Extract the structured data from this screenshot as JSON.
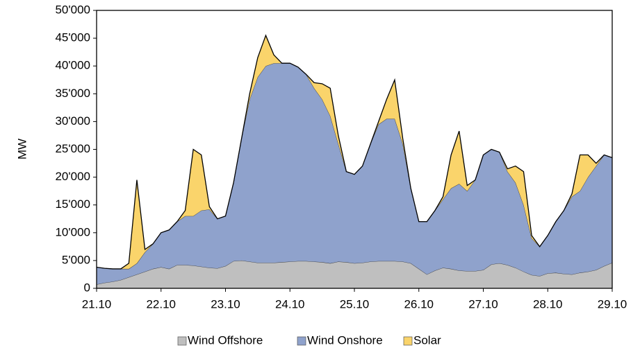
{
  "chart_data": {
    "type": "stacked_area",
    "y_label": "MW",
    "categories": [
      "21.10",
      null,
      null,
      null,
      null,
      null,
      null,
      null,
      "22.10",
      null,
      null,
      null,
      null,
      null,
      null,
      null,
      "23.10",
      null,
      null,
      null,
      null,
      null,
      null,
      null,
      "24.10",
      null,
      null,
      null,
      null,
      null,
      null,
      null,
      "25.10",
      null,
      null,
      null,
      null,
      null,
      null,
      null,
      "26.10",
      null,
      null,
      null,
      null,
      null,
      null,
      null,
      "27.10",
      null,
      null,
      null,
      null,
      null,
      null,
      null,
      "28.10",
      null,
      null,
      null,
      null,
      null,
      null,
      null,
      "29.10"
    ],
    "series": [
      {
        "name": "Wind Offshore",
        "color": "#bfbfbf",
        "values": [
          700,
          1000,
          1200,
          1500,
          2000,
          2500,
          3000,
          3500,
          3800,
          3500,
          4200,
          4200,
          4100,
          3900,
          3700,
          3600,
          4000,
          4900,
          5000,
          4800,
          4600,
          4600,
          4600,
          4700,
          4800,
          4900,
          4900,
          4800,
          4700,
          4500,
          4800,
          4700,
          4500,
          4600,
          4800,
          4900,
          4900,
          4900,
          4800,
          4500,
          3500,
          2500,
          3200,
          3700,
          3500,
          3200,
          3100,
          3100,
          3300,
          4300,
          4500,
          4200,
          3700,
          3000,
          2400,
          2200,
          2700,
          2800,
          2600,
          2500,
          2800,
          3000,
          3300,
          4000,
          4600
        ]
      },
      {
        "name": "Wind Onshore",
        "color": "#8fa2cc",
        "values": [
          3100,
          2600,
          2300,
          2000,
          1500,
          2000,
          3500,
          4500,
          6200,
          7000,
          7800,
          8800,
          8900,
          10100,
          10500,
          8900,
          9000,
          14100,
          22000,
          29200,
          33400,
          35400,
          35900,
          35800,
          35700,
          34900,
          33600,
          31200,
          29300,
          26500,
          21200,
          16300,
          16000,
          17400,
          21200,
          24600,
          25600,
          25600,
          21200,
          13500,
          8500,
          9500,
          10800,
          12300,
          14500,
          15600,
          14400,
          16400,
          20700,
          20700,
          20000,
          16800,
          15300,
          12000,
          6600,
          5300,
          6800,
          9200,
          11400,
          14000,
          14700,
          17000,
          18700,
          20000,
          18900
        ]
      },
      {
        "name": "Solar",
        "color": "#fad46b",
        "values": [
          0,
          0,
          0,
          0,
          1000,
          15000,
          500,
          0,
          0,
          0,
          0,
          1000,
          12000,
          10000,
          500,
          0,
          0,
          0,
          0,
          1000,
          3500,
          5500,
          1500,
          0,
          0,
          0,
          0,
          1000,
          2800,
          5000,
          1500,
          0,
          0,
          0,
          0,
          500,
          3500,
          7000,
          1000,
          0,
          0,
          0,
          0,
          500,
          6000,
          9500,
          1000,
          0,
          0,
          0,
          0,
          500,
          3000,
          6000,
          500,
          0,
          0,
          0,
          0,
          500,
          6500,
          4000,
          500,
          0,
          0
        ]
      }
    ],
    "ylim": [
      0,
      50000
    ],
    "yticks": [
      0,
      {
        "value": 5000,
        "label": "5'000"
      },
      {
        "value": 10000,
        "label": "10'000"
      },
      {
        "value": 15000,
        "label": "15'000"
      },
      {
        "value": 20000,
        "label": "20'000"
      },
      {
        "value": 25000,
        "label": "25'000"
      },
      {
        "value": 30000,
        "label": "30'000"
      },
      {
        "value": 35000,
        "label": "35'000"
      },
      {
        "value": 40000,
        "label": "40'000"
      },
      {
        "value": 45000,
        "label": "45'000"
      },
      {
        "value": 50000,
        "label": "50'000"
      }
    ],
    "grid": false,
    "legend": "bottom"
  }
}
